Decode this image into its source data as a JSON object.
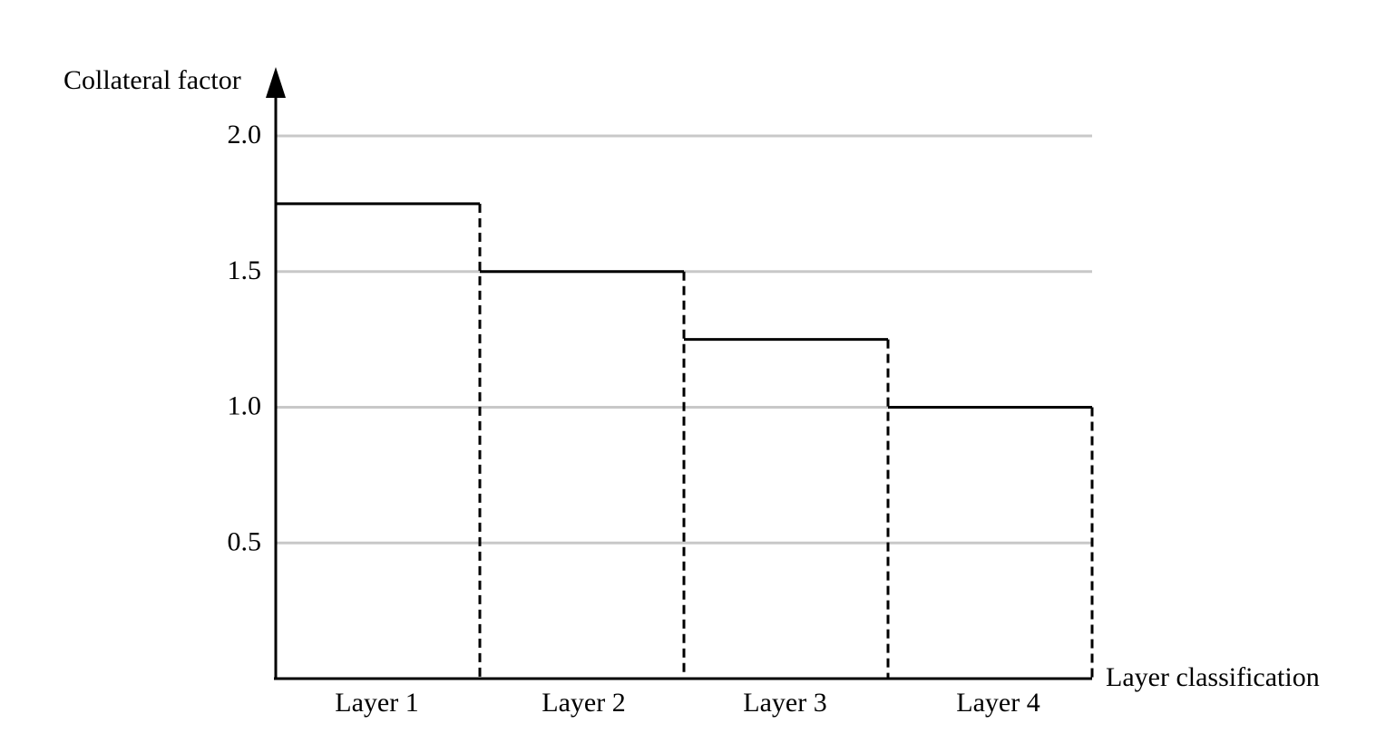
{
  "chart_data": {
    "type": "bar",
    "style": "step-outline",
    "categories": [
      "Layer 1",
      "Layer 2",
      "Layer 3",
      "Layer 4"
    ],
    "values": [
      1.75,
      1.5,
      1.25,
      1.0
    ],
    "xlabel": "Layer classification",
    "ylabel": "Collateral factor",
    "ylim": [
      0,
      2.0
    ],
    "yticks": [
      0.5,
      1.0,
      1.5,
      2.0
    ],
    "ytick_labels": [
      "0.5",
      "1.0",
      "1.5",
      "2.0"
    ],
    "grid": true,
    "legend": "none"
  },
  "colors": {
    "gridline": "#c8c8c8",
    "bar_outline": "#000000",
    "axis": "#000000",
    "background": "#ffffff"
  }
}
